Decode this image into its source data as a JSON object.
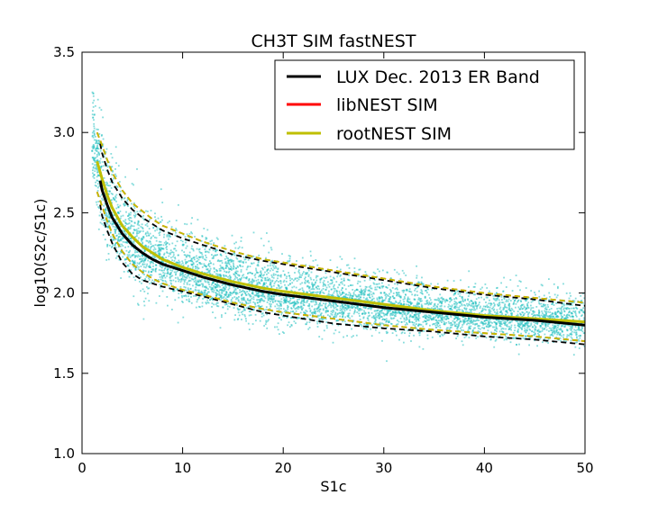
{
  "chart_data": {
    "type": "scatter",
    "title": "CH3T SIM fastNEST",
    "xlabel": "S1c",
    "ylabel": "log10(S2c/S1c)",
    "xlim": [
      0,
      50
    ],
    "ylim": [
      1.0,
      3.5
    ],
    "x_ticks": [
      0,
      10,
      20,
      30,
      40,
      50
    ],
    "x_tick_labels": [
      "0",
      "10",
      "20",
      "30",
      "40",
      "50"
    ],
    "y_ticks": [
      1.0,
      1.5,
      2.0,
      2.5,
      3.0,
      3.5
    ],
    "y_tick_labels": [
      "1.0",
      "1.5",
      "2.0",
      "2.5",
      "3.0",
      "3.5"
    ],
    "grid": false,
    "legend_position": "top-right",
    "scatter_color": "#20c0c0",
    "scatter_band": {
      "x": [
        1,
        1.5,
        2,
        3,
        4,
        5,
        7,
        10,
        15,
        20,
        25,
        30,
        35,
        40,
        45,
        50
      ],
      "center": [
        3.0,
        2.8,
        2.64,
        2.48,
        2.38,
        2.31,
        2.22,
        2.14,
        2.05,
        1.99,
        1.95,
        1.91,
        1.88,
        1.85,
        1.83,
        1.81
      ],
      "upper": [
        3.35,
        3.12,
        2.97,
        2.78,
        2.66,
        2.58,
        2.48,
        2.38,
        2.28,
        2.21,
        2.15,
        2.1,
        2.06,
        2.03,
        2.0,
        1.98
      ],
      "lower": [
        2.62,
        2.48,
        2.36,
        2.21,
        2.12,
        2.06,
        1.99,
        1.93,
        1.86,
        1.81,
        1.78,
        1.76,
        1.74,
        1.72,
        1.7,
        1.68
      ]
    },
    "series": [
      {
        "name": "LUX Dec. 2013 ER Band",
        "color": "#000000",
        "x": [
          1.8,
          2,
          2.5,
          3,
          4,
          5,
          6,
          7,
          8,
          10,
          12,
          15,
          18,
          20,
          25,
          30,
          35,
          40,
          45,
          50
        ],
        "mean": [
          2.7,
          2.64,
          2.55,
          2.47,
          2.37,
          2.3,
          2.25,
          2.21,
          2.18,
          2.14,
          2.1,
          2.05,
          2.01,
          1.99,
          1.95,
          1.91,
          1.88,
          1.85,
          1.83,
          1.8
        ],
        "upper": [
          2.93,
          2.87,
          2.77,
          2.69,
          2.59,
          2.52,
          2.47,
          2.43,
          2.39,
          2.34,
          2.3,
          2.24,
          2.2,
          2.18,
          2.13,
          2.08,
          2.03,
          1.99,
          1.96,
          1.92
        ],
        "lower": [
          2.55,
          2.48,
          2.39,
          2.31,
          2.19,
          2.12,
          2.08,
          2.06,
          2.04,
          2.01,
          1.98,
          1.93,
          1.88,
          1.86,
          1.81,
          1.78,
          1.76,
          1.73,
          1.71,
          1.68
        ]
      },
      {
        "name": "libNEST SIM",
        "color": "#ff0000",
        "x": [
          1.5,
          2,
          2.5,
          3,
          4,
          5,
          6,
          7,
          8,
          10,
          12,
          15,
          18,
          20,
          25,
          30,
          35,
          40,
          45,
          50
        ],
        "mean": [
          2.82,
          2.71,
          2.61,
          2.53,
          2.42,
          2.35,
          2.29,
          2.25,
          2.21,
          2.16,
          2.12,
          2.07,
          2.03,
          2.01,
          1.97,
          1.93,
          1.89,
          1.86,
          1.84,
          1.82
        ],
        "upper": [
          3.0,
          2.92,
          2.83,
          2.75,
          2.64,
          2.56,
          2.51,
          2.46,
          2.42,
          2.37,
          2.32,
          2.26,
          2.21,
          2.19,
          2.14,
          2.09,
          2.04,
          2.0,
          1.97,
          1.94
        ],
        "lower": [
          2.63,
          2.54,
          2.45,
          2.37,
          2.26,
          2.18,
          2.13,
          2.09,
          2.06,
          2.02,
          1.99,
          1.94,
          1.9,
          1.88,
          1.84,
          1.8,
          1.77,
          1.75,
          1.73,
          1.7
        ]
      },
      {
        "name": "rootNEST SIM",
        "color": "#bfbf00",
        "x": [
          1.5,
          2,
          2.5,
          3,
          4,
          5,
          6,
          7,
          8,
          10,
          12,
          15,
          18,
          20,
          25,
          30,
          35,
          40,
          45,
          50
        ],
        "mean": [
          2.82,
          2.71,
          2.61,
          2.53,
          2.42,
          2.35,
          2.29,
          2.25,
          2.21,
          2.16,
          2.12,
          2.07,
          2.03,
          2.01,
          1.97,
          1.93,
          1.89,
          1.86,
          1.84,
          1.82
        ],
        "upper": [
          3.0,
          2.92,
          2.83,
          2.75,
          2.64,
          2.56,
          2.51,
          2.46,
          2.42,
          2.37,
          2.32,
          2.26,
          2.21,
          2.19,
          2.14,
          2.09,
          2.04,
          2.0,
          1.97,
          1.94
        ],
        "lower": [
          2.63,
          2.54,
          2.45,
          2.37,
          2.26,
          2.18,
          2.13,
          2.09,
          2.06,
          2.02,
          1.99,
          1.94,
          1.9,
          1.88,
          1.84,
          1.8,
          1.77,
          1.75,
          1.73,
          1.7
        ]
      }
    ]
  }
}
